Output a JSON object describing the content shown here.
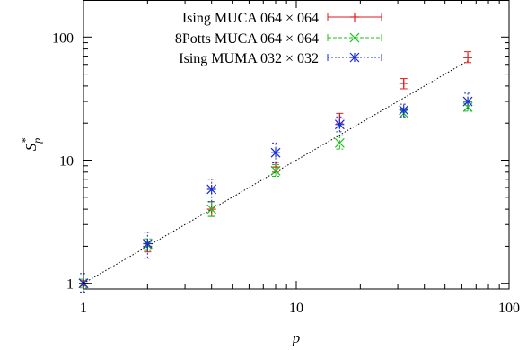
{
  "chart_data": {
    "type": "scatter",
    "title": "",
    "xlabel": "p",
    "ylabel": "S*_p",
    "xscale": "log",
    "yscale": "log",
    "xlim": [
      1,
      100
    ],
    "ylim": [
      0.9,
      200
    ],
    "x_ticks": [
      {
        "value": 1,
        "label": "1"
      },
      {
        "value": 10,
        "label": "10"
      },
      {
        "value": 100,
        "label": "100"
      }
    ],
    "y_ticks": [
      {
        "value": 1,
        "label": "1"
      },
      {
        "value": 10,
        "label": "10"
      },
      {
        "value": 100,
        "label": "100"
      }
    ],
    "grid": false,
    "legend_position": "top-right",
    "reference_line": {
      "style": "dotted",
      "color": "#000000",
      "x": [
        1,
        64
      ],
      "y": [
        1,
        64
      ]
    },
    "series": [
      {
        "name": "Ising MUCA 064 × 064",
        "color": "#e31a1c",
        "marker": "plus",
        "points": [
          {
            "x": 1,
            "y": 1.0,
            "lo": 0.95,
            "hi": 1.05
          },
          {
            "x": 2,
            "y": 2.0,
            "lo": 1.8,
            "hi": 2.2
          },
          {
            "x": 4,
            "y": 4.0,
            "lo": 3.5,
            "hi": 4.6
          },
          {
            "x": 8,
            "y": 8.8,
            "lo": 8.0,
            "hi": 9.6
          },
          {
            "x": 16,
            "y": 22,
            "lo": 20,
            "hi": 24
          },
          {
            "x": 32,
            "y": 42,
            "lo": 38,
            "hi": 46
          },
          {
            "x": 64,
            "y": 68,
            "lo": 62,
            "hi": 76
          }
        ]
      },
      {
        "name": "8Potts MUCA 064 × 064",
        "color": "#1cc01c",
        "marker": "cross",
        "points": [
          {
            "x": 1,
            "y": 1.0,
            "lo": 0.92,
            "hi": 1.08
          },
          {
            "x": 2,
            "y": 2.05,
            "lo": 1.85,
            "hi": 2.3
          },
          {
            "x": 4,
            "y": 4.0,
            "lo": 3.5,
            "hi": 4.6
          },
          {
            "x": 8,
            "y": 8.2,
            "lo": 7.4,
            "hi": 9.2
          },
          {
            "x": 16,
            "y": 13.8,
            "lo": 12.3,
            "hi": 15.8
          },
          {
            "x": 32,
            "y": 24,
            "lo": 22,
            "hi": 26.5
          },
          {
            "x": 64,
            "y": 27,
            "lo": 25,
            "hi": 29
          }
        ]
      },
      {
        "name": "Ising MUMA 032 × 032",
        "color": "#1a2bd6",
        "marker": "star",
        "points": [
          {
            "x": 1,
            "y": 1.0,
            "lo": 0.85,
            "hi": 1.2
          },
          {
            "x": 2,
            "y": 2.1,
            "lo": 1.6,
            "hi": 2.6
          },
          {
            "x": 4,
            "y": 5.8,
            "lo": 4.6,
            "hi": 7.0
          },
          {
            "x": 8,
            "y": 11.5,
            "lo": 9.5,
            "hi": 13.8
          },
          {
            "x": 16,
            "y": 19.5,
            "lo": 17,
            "hi": 22.5
          },
          {
            "x": 32,
            "y": 25.5,
            "lo": 22.5,
            "hi": 28.5
          },
          {
            "x": 64,
            "y": 30,
            "lo": 26,
            "hi": 35
          }
        ]
      }
    ]
  }
}
